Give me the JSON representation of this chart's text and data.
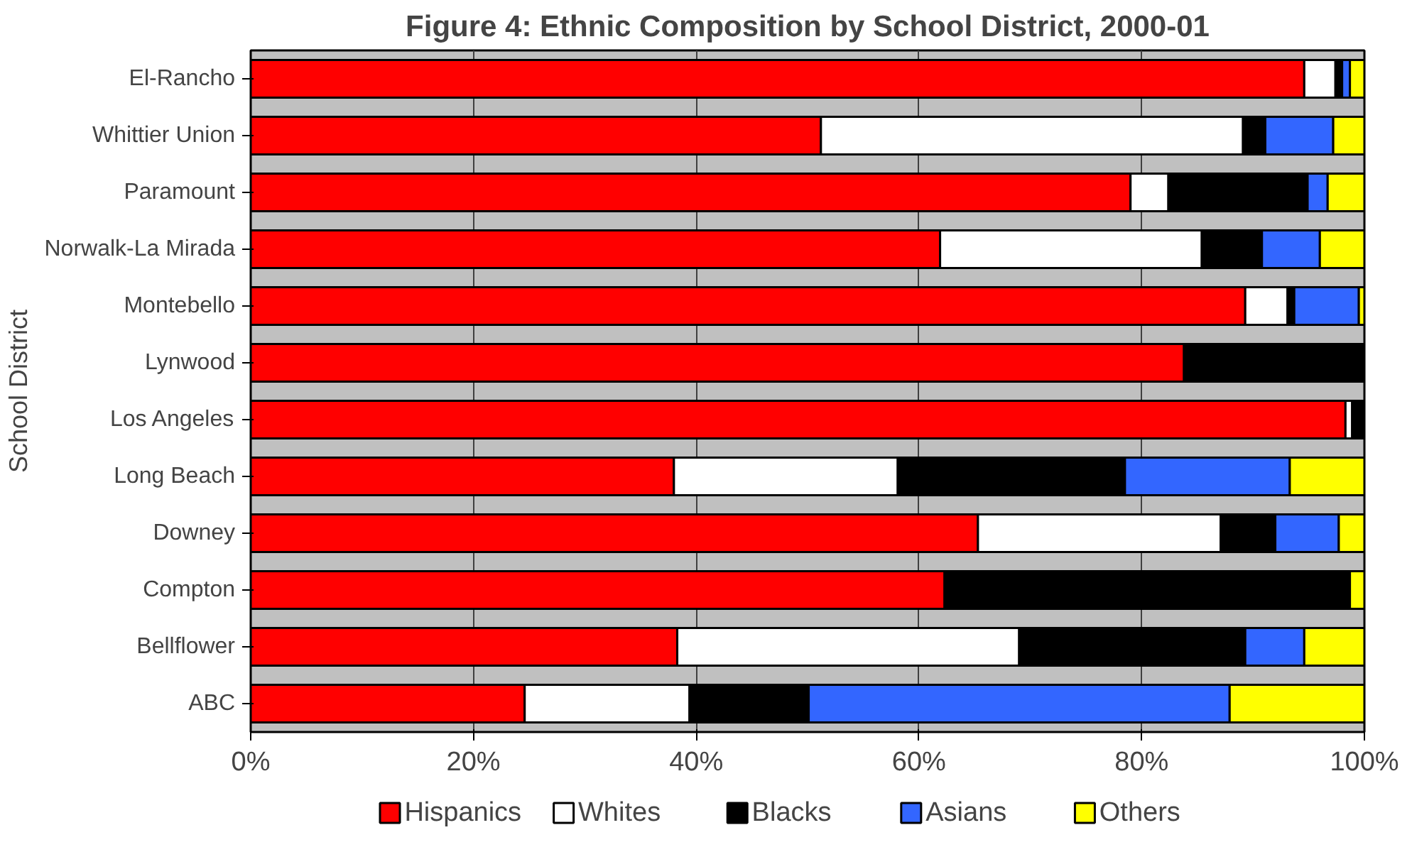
{
  "chart_data": {
    "type": "bar",
    "orientation": "horizontal",
    "stacked": true,
    "title": "Figure 4: Ethnic Composition by School District, 2000-01",
    "ylabel": "School District",
    "categories": [
      "El-Rancho",
      "Whittier Union",
      "Paramount",
      "Norwalk-La Mirada",
      "Montebello",
      "Lynwood",
      "Los Angeles",
      "Long Beach",
      "Downey",
      "Compton",
      "Bellflower",
      "ABC"
    ],
    "series": [
      {
        "name": "Hispanics",
        "color": "#ff0000",
        "values": [
          94.6,
          51.2,
          79.0,
          61.9,
          89.3,
          83.8,
          98.3,
          38.0,
          65.3,
          62.3,
          38.3,
          24.6
        ]
      },
      {
        "name": "Whites",
        "color": "#ffffff",
        "values": [
          2.8,
          37.9,
          3.4,
          23.5,
          3.8,
          0,
          0.6,
          20.1,
          21.8,
          0,
          30.7,
          14.8
        ]
      },
      {
        "name": "Blacks",
        "color": "#000000",
        "values": [
          0.6,
          2.0,
          12.5,
          5.4,
          0.6,
          16.2,
          1.1,
          20.4,
          4.9,
          36.4,
          20.3,
          10.7
        ]
      },
      {
        "name": "Asians",
        "color": "#3366ff",
        "values": [
          0.7,
          6.1,
          1.8,
          5.2,
          5.8,
          0,
          0,
          14.8,
          5.7,
          0,
          5.3,
          37.8
        ]
      },
      {
        "name": "Others",
        "color": "#ffff00",
        "values": [
          1.3,
          2.8,
          3.3,
          4.0,
          0.5,
          0,
          0,
          6.7,
          2.3,
          1.3,
          5.4,
          12.1
        ]
      }
    ],
    "xlim": [
      0,
      100
    ],
    "xticks": [
      {
        "value": 0,
        "label": "0%"
      },
      {
        "value": 20,
        "label": "20%"
      },
      {
        "value": 40,
        "label": "40%"
      },
      {
        "value": 60,
        "label": "60%"
      },
      {
        "value": 80,
        "label": "80%"
      },
      {
        "value": 100,
        "label": "100%"
      }
    ],
    "grid": "x",
    "legend": "bottom"
  }
}
